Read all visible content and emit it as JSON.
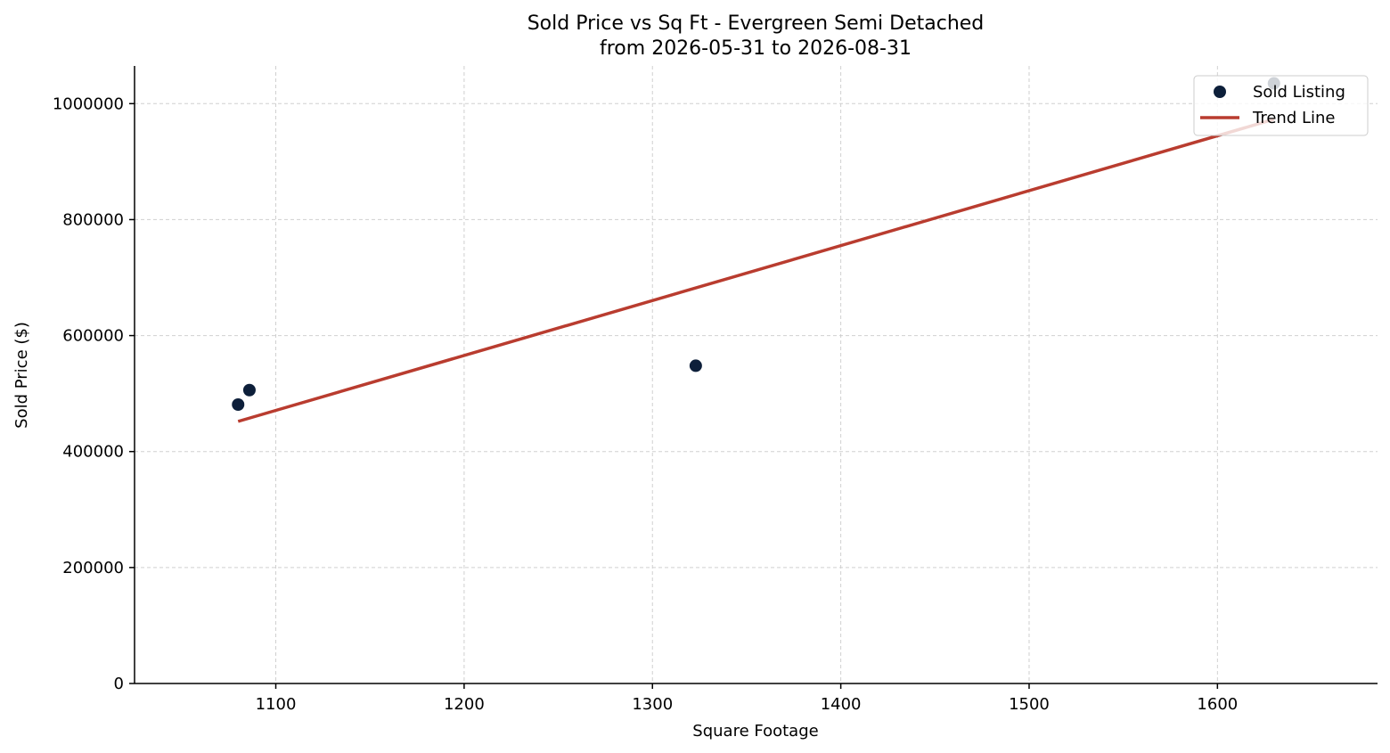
{
  "chart_data": {
    "type": "scatter",
    "title_line1": "Sold Price vs Sq Ft - Evergreen Semi Detached",
    "title_line2": "from 2026-05-31 to 2026-08-31",
    "xlabel": "Square Footage",
    "ylabel": "Sold Price ($)",
    "xlim": [
      1025,
      1685
    ],
    "ylim": [
      0,
      1065000
    ],
    "xticks": [
      1100,
      1200,
      1300,
      1400,
      1500,
      1600
    ],
    "yticks": [
      0,
      200000,
      400000,
      600000,
      800000,
      1000000
    ],
    "grid": true,
    "legend_position": "top-right",
    "series": [
      {
        "name": "Sold Listing",
        "kind": "scatter",
        "color": "#0d1f3a",
        "points": [
          {
            "x": 1080,
            "y": 481000
          },
          {
            "x": 1086,
            "y": 506000
          },
          {
            "x": 1323,
            "y": 548000
          },
          {
            "x": 1630,
            "y": 1035000
          }
        ]
      },
      {
        "name": "Trend Line",
        "kind": "line",
        "color": "#b93c2f",
        "points": [
          {
            "x": 1080,
            "y": 452000
          },
          {
            "x": 1630,
            "y": 973000
          }
        ]
      }
    ]
  }
}
